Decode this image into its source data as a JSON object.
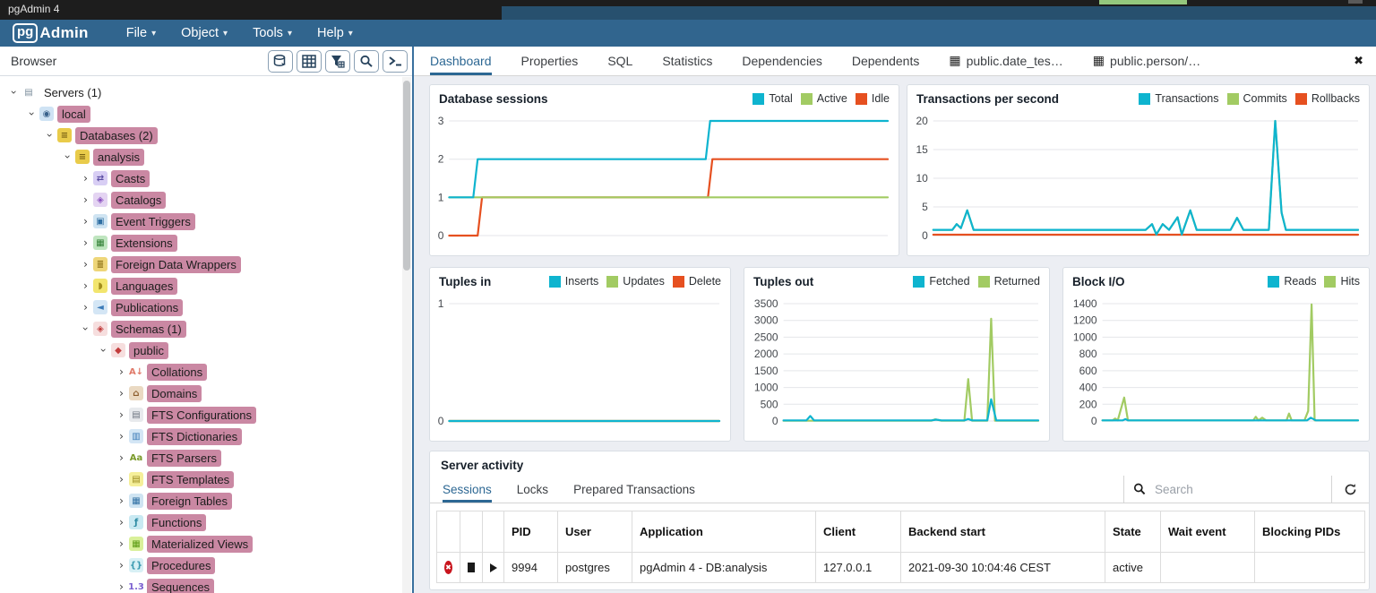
{
  "title_bar": {
    "app_title": "pgAdmin 4"
  },
  "menu_bar": {
    "logo_pg": "pg",
    "logo_admin": "Admin",
    "items": [
      {
        "label": "File"
      },
      {
        "label": "Object"
      },
      {
        "label": "Tools"
      },
      {
        "label": "Help"
      }
    ]
  },
  "browser_panel": {
    "header": "Browser",
    "toolbar_icons": [
      "storage-manager-icon",
      "query-tool-icon",
      "filtered-rows-icon",
      "search-objects-icon",
      "psql-tool-icon"
    ],
    "highlight_color": "#ca88a3",
    "icon_styles": {
      "servers": {
        "g": "▤",
        "c": "#7d8f9d",
        "bg": ""
      },
      "server": {
        "g": "◉",
        "c": "#39628c",
        "bg": "#cfe3f4"
      },
      "database": {
        "g": "≡",
        "c": "#7a6212",
        "bg": "#e9cb4a"
      },
      "casts": {
        "g": "⇄",
        "c": "#5b4ea3",
        "bg": "#d8cef4"
      },
      "catalogs": {
        "g": "◈",
        "c": "#8a4fc0",
        "bg": "#e4d4f2"
      },
      "event-triggers": {
        "g": "▣",
        "c": "#2f6fa3",
        "bg": "#cfe4f2"
      },
      "extensions": {
        "g": "▦",
        "c": "#2e7d32",
        "bg": "#bfe5bf"
      },
      "foreign-data-wrappers": {
        "g": "≣",
        "c": "#8a6d14",
        "bg": "#eed679"
      },
      "languages": {
        "g": "◗",
        "c": "#a28e1c",
        "bg": "#f2e56e"
      },
      "publications": {
        "g": "◄",
        "c": "#3a7ab8",
        "bg": "#d4e6f5"
      },
      "schemas": {
        "g": "◈",
        "c": "#c23b3b",
        "bg": "#f6dede"
      },
      "schema": {
        "g": "◆",
        "c": "#c23b3b",
        "bg": "#f6dede"
      },
      "collations": {
        "g": "A↓",
        "c": "#e07a6a",
        "bg": ""
      },
      "domains": {
        "g": "⌂",
        "c": "#8a5a2a",
        "bg": "#ead9c2"
      },
      "fts-configurations": {
        "g": "▤",
        "c": "#6e7681",
        "bg": "#e8eaed"
      },
      "fts-dictionaries": {
        "g": "▥",
        "c": "#3a7ab8",
        "bg": "#d4e6f5"
      },
      "fts-parsers": {
        "g": "Aa",
        "c": "#7a9a2a",
        "bg": ""
      },
      "fts-templates": {
        "g": "▤",
        "c": "#9a8a1f",
        "bg": "#f5ef9a"
      },
      "foreign-tables": {
        "g": "▦",
        "c": "#2f6fa3",
        "bg": "#cfe4f2"
      },
      "functions": {
        "g": "ƒ",
        "c": "#2e8ba3",
        "bg": "#c9e9f2"
      },
      "materialized-views": {
        "g": "▦",
        "c": "#5a9a12",
        "bg": "#d9f09a"
      },
      "procedures": {
        "g": "{}",
        "c": "#3a9ab0",
        "bg": "#d8f0f5"
      },
      "sequences": {
        "g": "1.3",
        "c": "#7a5fd0",
        "bg": ""
      }
    },
    "tree": [
      {
        "label": "Servers (1)",
        "indent": 0,
        "chev": "down",
        "icon": "servers",
        "hl": false
      },
      {
        "label": "local",
        "indent": 1,
        "chev": "down",
        "icon": "server",
        "hl": true
      },
      {
        "label": "Databases (2)",
        "indent": 2,
        "chev": "down",
        "icon": "database",
        "hl": true
      },
      {
        "label": "analysis",
        "indent": 3,
        "chev": "down",
        "icon": "database",
        "hl": true
      },
      {
        "label": "Casts",
        "indent": 4,
        "chev": "right",
        "icon": "casts",
        "hl": true
      },
      {
        "label": "Catalogs",
        "indent": 4,
        "chev": "right",
        "icon": "catalogs",
        "hl": true
      },
      {
        "label": "Event Triggers",
        "indent": 4,
        "chev": "right",
        "icon": "event-triggers",
        "hl": true
      },
      {
        "label": "Extensions",
        "indent": 4,
        "chev": "right",
        "icon": "extensions",
        "hl": true
      },
      {
        "label": "Foreign Data Wrappers",
        "indent": 4,
        "chev": "right",
        "icon": "foreign-data-wrappers",
        "hl": true
      },
      {
        "label": "Languages",
        "indent": 4,
        "chev": "right",
        "icon": "languages",
        "hl": true
      },
      {
        "label": "Publications",
        "indent": 4,
        "chev": "right",
        "icon": "publications",
        "hl": true
      },
      {
        "label": "Schemas (1)",
        "indent": 4,
        "chev": "down",
        "icon": "schemas",
        "hl": true
      },
      {
        "label": "public",
        "indent": 5,
        "chev": "down",
        "icon": "schema",
        "hl": true
      },
      {
        "label": "Collations",
        "indent": 6,
        "chev": "right",
        "icon": "collations",
        "hl": true
      },
      {
        "label": "Domains",
        "indent": 6,
        "chev": "right",
        "icon": "domains",
        "hl": true
      },
      {
        "label": "FTS Configurations",
        "indent": 6,
        "chev": "right",
        "icon": "fts-configurations",
        "hl": true
      },
      {
        "label": "FTS Dictionaries",
        "indent": 6,
        "chev": "right",
        "icon": "fts-dictionaries",
        "hl": true
      },
      {
        "label": "FTS Parsers",
        "indent": 6,
        "chev": "right",
        "icon": "fts-parsers",
        "hl": true
      },
      {
        "label": "FTS Templates",
        "indent": 6,
        "chev": "right",
        "icon": "fts-templates",
        "hl": true
      },
      {
        "label": "Foreign Tables",
        "indent": 6,
        "chev": "right",
        "icon": "foreign-tables",
        "hl": true
      },
      {
        "label": "Functions",
        "indent": 6,
        "chev": "right",
        "icon": "functions",
        "hl": true
      },
      {
        "label": "Materialized Views",
        "indent": 6,
        "chev": "right",
        "icon": "materialized-views",
        "hl": true
      },
      {
        "label": "Procedures",
        "indent": 6,
        "chev": "right",
        "icon": "procedures",
        "hl": true
      },
      {
        "label": "Sequences",
        "indent": 6,
        "chev": "right",
        "icon": "sequences",
        "hl": true
      }
    ]
  },
  "main": {
    "tabs": [
      {
        "label": "Dashboard",
        "active": true,
        "icon": ""
      },
      {
        "label": "Properties",
        "active": false,
        "icon": ""
      },
      {
        "label": "SQL",
        "active": false,
        "icon": ""
      },
      {
        "label": "Statistics",
        "active": false,
        "icon": ""
      },
      {
        "label": "Dependencies",
        "active": false,
        "icon": ""
      },
      {
        "label": "Dependents",
        "active": false,
        "icon": ""
      },
      {
        "label": "public.date_tes…",
        "active": false,
        "icon": "table"
      },
      {
        "label": "public.person/…",
        "active": false,
        "icon": "table"
      }
    ],
    "close_label": "✖"
  },
  "chart_data": [
    {
      "type": "line",
      "title": "Database sessions",
      "ylim": [
        0,
        3
      ],
      "yticks": [
        3,
        2,
        1,
        0
      ],
      "series": [
        {
          "name": "Total",
          "color": "#0eb4cf",
          "points": [
            [
              0,
              1
            ],
            [
              5.5,
              1
            ],
            [
              6.5,
              2
            ],
            [
              58.5,
              2
            ],
            [
              59.5,
              3
            ],
            [
              100,
              3
            ]
          ]
        },
        {
          "name": "Active",
          "color": "#a2cb63",
          "points": [
            [
              0,
              1
            ],
            [
              100,
              1
            ]
          ]
        },
        {
          "name": "Idle",
          "color": "#e65020",
          "points": [
            [
              0,
              0
            ],
            [
              6.5,
              0
            ],
            [
              7.5,
              1
            ],
            [
              59,
              1
            ],
            [
              60,
              2
            ],
            [
              100,
              2
            ]
          ]
        }
      ]
    },
    {
      "type": "line",
      "title": "Transactions per second",
      "ylim": [
        0,
        20
      ],
      "yticks": [
        20,
        15,
        10,
        5,
        0
      ],
      "series": [
        {
          "name": "Transactions",
          "color": "#0eb4cf",
          "points": [
            [
              0,
              1
            ],
            [
              4.5,
              1
            ],
            [
              5.5,
              2
            ],
            [
              6.5,
              1.3
            ],
            [
              8,
              4.4
            ],
            [
              9.5,
              1
            ],
            [
              50,
              1
            ],
            [
              51.5,
              2
            ],
            [
              52.5,
              0.2
            ],
            [
              54,
              2
            ],
            [
              55.5,
              1
            ],
            [
              57.5,
              3.2
            ],
            [
              58.5,
              0.2
            ],
            [
              60.5,
              4.4
            ],
            [
              62,
              1
            ],
            [
              70,
              1
            ],
            [
              71.5,
              3.1
            ],
            [
              73,
              1
            ],
            [
              79,
              1
            ],
            [
              80.5,
              20
            ],
            [
              82,
              4
            ],
            [
              83,
              1
            ],
            [
              100,
              1
            ]
          ]
        },
        {
          "name": "Commits",
          "color": "#a2cb63",
          "points": [
            [
              0,
              1
            ],
            [
              4.5,
              1
            ],
            [
              5.5,
              2
            ],
            [
              6.5,
              1.3
            ],
            [
              8,
              4.4
            ],
            [
              9.5,
              1
            ],
            [
              50,
              1
            ],
            [
              51.5,
              2
            ],
            [
              52.5,
              0.2
            ],
            [
              54,
              2
            ],
            [
              55.5,
              1
            ],
            [
              57.5,
              3.2
            ],
            [
              58.5,
              0.2
            ],
            [
              60.5,
              4.4
            ],
            [
              62,
              1
            ],
            [
              70,
              1
            ],
            [
              71.5,
              3.1
            ],
            [
              73,
              1
            ],
            [
              79,
              1
            ],
            [
              80.5,
              20
            ],
            [
              82,
              4
            ],
            [
              83,
              1
            ],
            [
              100,
              1
            ]
          ]
        },
        {
          "name": "Rollbacks",
          "color": "#e65020",
          "points": [
            [
              0,
              0.15
            ],
            [
              100,
              0.15
            ]
          ]
        }
      ]
    },
    {
      "type": "line",
      "title": "Tuples in",
      "ylim": [
        0,
        1
      ],
      "yticks": [
        1,
        0
      ],
      "series": [
        {
          "name": "Inserts",
          "color": "#0eb4cf",
          "points": [
            [
              0,
              0
            ],
            [
              100,
              0
            ]
          ]
        },
        {
          "name": "Updates",
          "color": "#a2cb63",
          "points": [
            [
              0,
              0
            ],
            [
              100,
              0
            ]
          ]
        },
        {
          "name": "Delete",
          "color": "#e65020",
          "points": [
            [
              0,
              0
            ],
            [
              100,
              0
            ]
          ]
        }
      ]
    },
    {
      "type": "line",
      "title": "Tuples out",
      "ylim": [
        0,
        3500
      ],
      "yticks": [
        3500,
        3000,
        2500,
        2000,
        1500,
        1000,
        500,
        0
      ],
      "series": [
        {
          "name": "Fetched",
          "color": "#0eb4cf",
          "points": [
            [
              0,
              18
            ],
            [
              9,
              18
            ],
            [
              10.5,
              150
            ],
            [
              12,
              18
            ],
            [
              58,
              18
            ],
            [
              60,
              40
            ],
            [
              62,
              18
            ],
            [
              71,
              18
            ],
            [
              72.5,
              60
            ],
            [
              74,
              18
            ],
            [
              80,
              18
            ],
            [
              81.5,
              650
            ],
            [
              83.5,
              18
            ],
            [
              100,
              18
            ]
          ]
        },
        {
          "name": "Returned",
          "color": "#a2cb63",
          "points": [
            [
              0,
              8
            ],
            [
              58,
              8
            ],
            [
              59.5,
              50
            ],
            [
              61,
              25
            ],
            [
              62,
              8
            ],
            [
              71,
              8
            ],
            [
              72.5,
              1250
            ],
            [
              74,
              8
            ],
            [
              80,
              8
            ],
            [
              81.5,
              3050
            ],
            [
              83,
              8
            ],
            [
              100,
              8
            ]
          ]
        }
      ]
    },
    {
      "type": "line",
      "title": "Block I/O",
      "ylim": [
        0,
        1400
      ],
      "yticks": [
        1400,
        1200,
        1000,
        800,
        600,
        400,
        200,
        0
      ],
      "series": [
        {
          "name": "Reads",
          "color": "#0eb4cf",
          "points": [
            [
              0,
              8
            ],
            [
              8,
              8
            ],
            [
              9,
              22
            ],
            [
              10,
              8
            ],
            [
              80,
              8
            ],
            [
              81.5,
              40
            ],
            [
              83.5,
              8
            ],
            [
              100,
              8
            ]
          ]
        },
        {
          "name": "Hits",
          "color": "#a2cb63",
          "points": [
            [
              0,
              8
            ],
            [
              4,
              8
            ],
            [
              5,
              30
            ],
            [
              6,
              8
            ],
            [
              8.5,
              280
            ],
            [
              10,
              8
            ],
            [
              59,
              8
            ],
            [
              60,
              50
            ],
            [
              61,
              8
            ],
            [
              62.5,
              40
            ],
            [
              64,
              8
            ],
            [
              72,
              8
            ],
            [
              73,
              90
            ],
            [
              74,
              8
            ],
            [
              79,
              8
            ],
            [
              80.5,
              120
            ],
            [
              81.8,
              1390
            ],
            [
              83,
              8
            ],
            [
              100,
              8
            ]
          ]
        }
      ]
    }
  ],
  "server_activity": {
    "title": "Server activity",
    "tabs": [
      {
        "label": "Sessions",
        "active": true
      },
      {
        "label": "Locks",
        "active": false
      },
      {
        "label": "Prepared Transactions",
        "active": false
      }
    ],
    "search_placeholder": "Search",
    "table": {
      "headers": [
        "",
        "",
        "",
        "PID",
        "User",
        "Application",
        "Client",
        "Backend start",
        "State",
        "Wait event",
        "Blocking PIDs"
      ],
      "rows": [
        {
          "cells": [
            "",
            "",
            "",
            "9994",
            "postgres",
            "pgAdmin 4 - DB:analysis",
            "127.0.0.1",
            "2021-09-30 10:04:46 CEST",
            "active",
            "",
            ""
          ]
        }
      ]
    }
  }
}
